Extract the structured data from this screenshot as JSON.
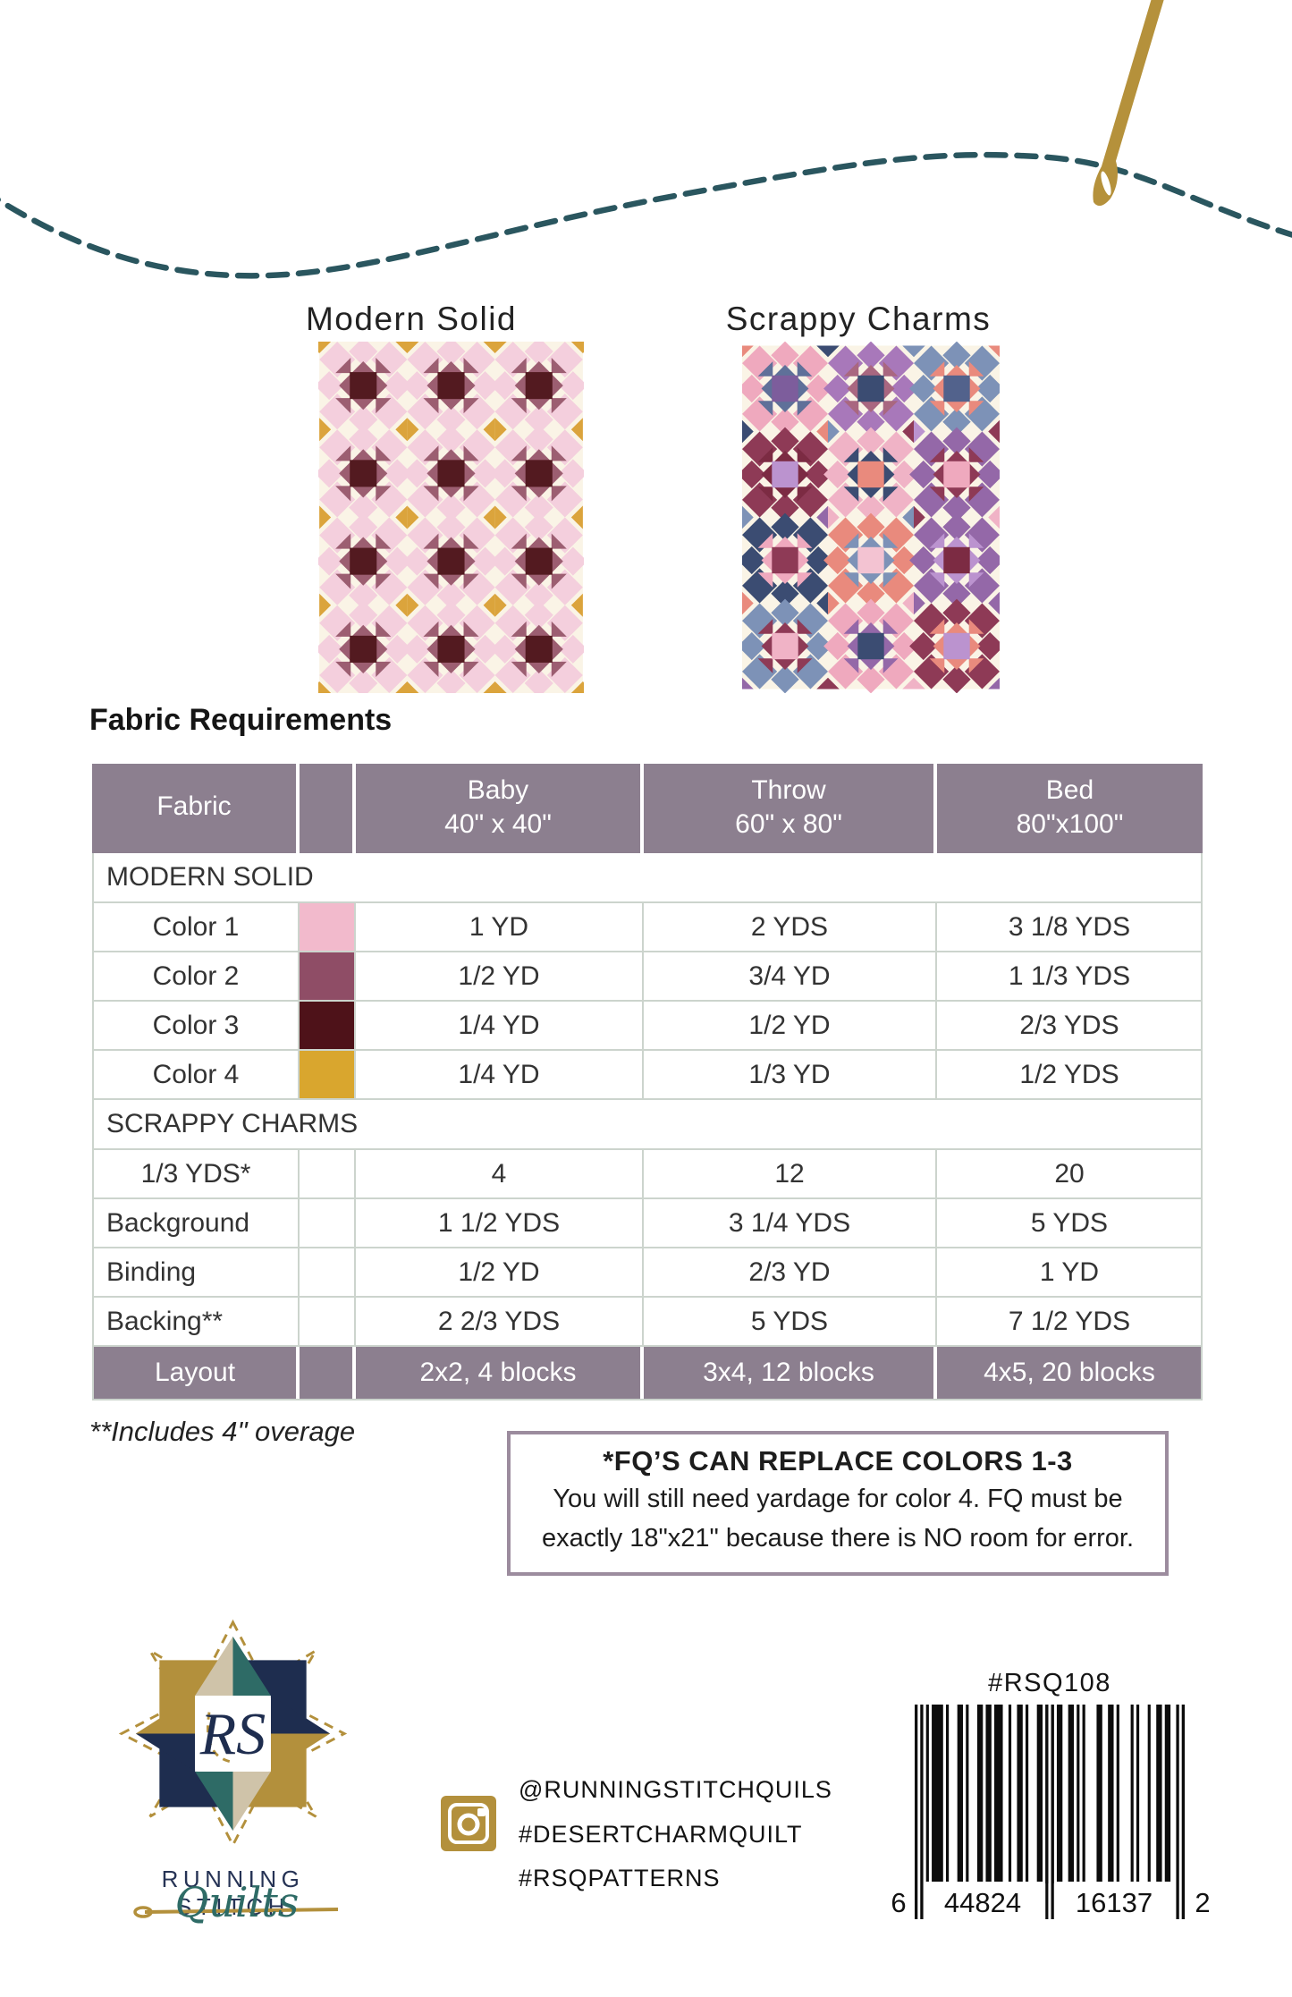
{
  "quilts": {
    "modern": {
      "label": "Modern Solid",
      "bg": "#FAF4E6",
      "petal": "#F4CFDD",
      "star": "#9C5E71",
      "center": "#531A20",
      "accent": "#DBA43C"
    },
    "scrappy": {
      "label": "Scrappy Charms",
      "bg": "#FAF4E6",
      "blocks": [
        [
          "#EFA9BE",
          "#5F7099",
          "#7D5D9C"
        ],
        [
          "#A878BA",
          "#A96780",
          "#3B4C72"
        ],
        [
          "#7D92B7",
          "#E98A7D",
          "#52628C"
        ],
        [
          "#8E3A56",
          "#7C2B43",
          "#BB93CF"
        ],
        [
          "#F0B3C6",
          "#3B4C72",
          "#E98A7D"
        ],
        [
          "#9468A8",
          "#8E3A56",
          "#EFA9BE"
        ],
        [
          "#3B4C72",
          "#EFA9BE",
          "#8E3A56"
        ],
        [
          "#E98A7D",
          "#7D92B7",
          "#F3C3D2"
        ],
        [
          "#9468A8",
          "#BB93CF",
          "#7C2B43"
        ],
        [
          "#7D92B7",
          "#8E3A56",
          "#F0B3C6"
        ],
        [
          "#EFA9BE",
          "#9468A8",
          "#3B4C72"
        ],
        [
          "#8E3A56",
          "#E98A7D",
          "#BB93CF"
        ]
      ],
      "accent_pairs": [
        [
          "#E98A7D",
          "#7D92B7"
        ],
        [
          "#9468A8",
          "#F0B3C6"
        ],
        [
          "#3B4C72",
          "#E98A7D"
        ],
        [
          "#8E3A56",
          "#BB93CF"
        ],
        [
          "#7D92B7",
          "#8E3A56"
        ],
        [
          "#F0B3C6",
          "#9468A8"
        ]
      ]
    }
  },
  "decor": {
    "thread_color": "#2A565F",
    "needle_color": "#B5913B"
  },
  "section_title": "Fabric Requirements",
  "table": {
    "header_bg": "#8C7F8F",
    "border_color": "#ccd4cd",
    "columns": [
      {
        "label": "Fabric",
        "size": ""
      },
      {
        "label": "Baby",
        "size": "40\" x 40\""
      },
      {
        "label": "Throw",
        "size": "60\" x 80\""
      },
      {
        "label": "Bed",
        "size": "80\"x100\""
      }
    ],
    "rows": [
      {
        "type": "section",
        "label": "MODERN SOLID"
      },
      {
        "type": "data",
        "label": "Color 1",
        "swatch": "#F2BACC",
        "align": "center",
        "values": [
          "1 YD",
          "2 YDS",
          "3 1/8 YDS"
        ]
      },
      {
        "type": "data",
        "label": "Color 2",
        "swatch": "#8F4D66",
        "align": "center",
        "values": [
          "1/2 YD",
          "3/4 YD",
          "1 1/3 YDS"
        ]
      },
      {
        "type": "data",
        "label": "Color 3",
        "swatch": "#4E1219",
        "align": "center",
        "values": [
          "1/4 YD",
          "1/2 YD",
          "2/3 YDS"
        ]
      },
      {
        "type": "data",
        "label": "Color 4",
        "swatch": "#D9A62E",
        "align": "center",
        "values": [
          "1/4 YD",
          "1/3 YD",
          "1/2 YDS"
        ]
      },
      {
        "type": "section",
        "label": "SCRAPPY CHARMS"
      },
      {
        "type": "data",
        "label": "1/3 YDS*",
        "swatch": null,
        "align": "center",
        "values": [
          "4",
          "12",
          "20"
        ]
      },
      {
        "type": "data",
        "label": "Background",
        "swatch": null,
        "align": "left",
        "values": [
          "1 1/2 YDS",
          "3 1/4 YDS",
          "5 YDS"
        ]
      },
      {
        "type": "data",
        "label": "Binding",
        "swatch": null,
        "align": "left",
        "values": [
          "1/2 YD",
          "2/3 YD",
          "1 YD"
        ]
      },
      {
        "type": "data",
        "label": "Backing**",
        "swatch": null,
        "align": "left",
        "values": [
          "2 2/3 YDS",
          "5 YDS",
          "7 1/2 YDS"
        ]
      },
      {
        "type": "layout",
        "label": "Layout",
        "values": [
          "2x2, 4 blocks",
          "3x4, 12 blocks",
          "4x5, 20 blocks"
        ]
      }
    ]
  },
  "footnote": "**Includes 4\" overage",
  "fq_note": {
    "title": "*FQ’S CAN REPLACE COLORS 1-3",
    "body": "You will still need yardage for color 4. FQ must be exactly 18\"x21\" because there is NO room for error."
  },
  "brand": {
    "monogram": "RS",
    "name": "RUNNING STITCH",
    "script": "Quilts",
    "star_colors": {
      "gold": "#B3903C",
      "teal": "#2E6B66",
      "navy": "#1E2D4F",
      "beige": "#CFC3A9"
    }
  },
  "social": {
    "handles": [
      "@RUNNINGSTITCHQUILS",
      "#DESERTCHARMQUILT",
      "#RSQPATTERNS"
    ]
  },
  "sku": "#RSQ108",
  "barcode": {
    "left_digit": "6",
    "group1": "44824",
    "group2": "16137",
    "right_digit": "2"
  }
}
